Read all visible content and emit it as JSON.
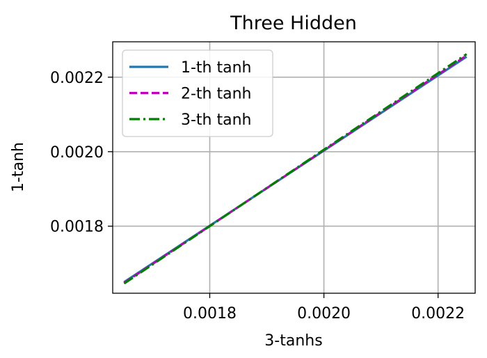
{
  "chart_data": {
    "type": "line",
    "title": "Three Hidden",
    "xlabel": "3-tanhs",
    "ylabel": "1-tanh",
    "xlim": [
      0.00163,
      0.002265
    ],
    "ylim": [
      0.00162,
      0.002295
    ],
    "xticks": [
      0.0018,
      0.002,
      0.0022
    ],
    "yticks": [
      0.0018,
      0.002,
      0.0022
    ],
    "xtick_labels": [
      "0.0018",
      "0.0020",
      "0.0022"
    ],
    "ytick_labels": [
      "0.0018",
      "0.0020",
      "0.0022"
    ],
    "grid": true,
    "legend_position": "top-left",
    "series": [
      {
        "name": "1-th tanh",
        "color": "#1f77b4",
        "style": "solid",
        "x": [
          0.00165,
          0.00225
        ],
        "y": [
          0.00165,
          0.002255
        ]
      },
      {
        "name": "2-th tanh",
        "color": "#bf00bf",
        "style": "dashed",
        "x": [
          0.00165,
          0.00225
        ],
        "y": [
          0.001648,
          0.002258
        ]
      },
      {
        "name": "3-th tanh",
        "color": "#008000",
        "style": "dashdot",
        "x": [
          0.00165,
          0.00225
        ],
        "y": [
          0.001646,
          0.002262
        ]
      }
    ]
  }
}
